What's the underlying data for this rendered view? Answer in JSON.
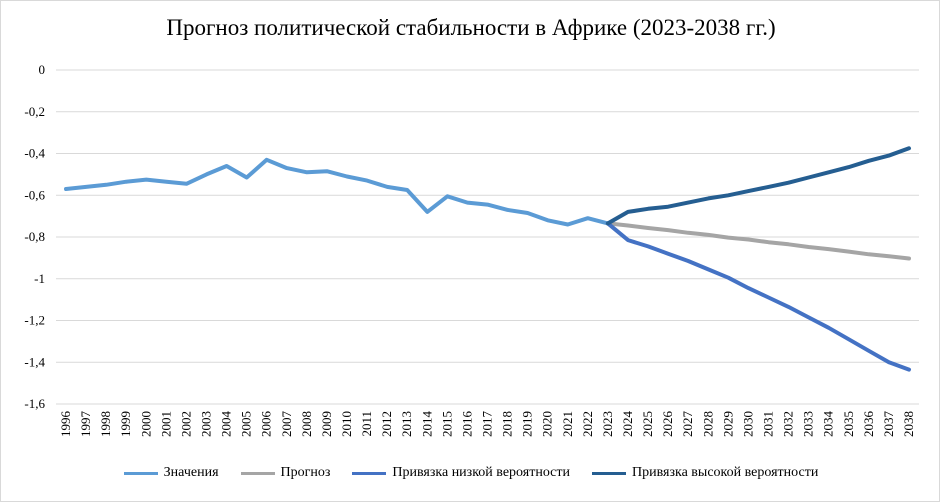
{
  "chart_data": {
    "type": "line",
    "title": "Прогноз политической стабильности в Африке (2023-2038 гг.)",
    "xlabel": "",
    "ylabel": "",
    "ylim": [
      -1.6,
      0
    ],
    "yticks": [
      "0",
      "-0,2",
      "-0,4",
      "-0,6",
      "-0,8",
      "-1",
      "-1,2",
      "-1,4",
      "-1,6"
    ],
    "grid": true,
    "legend_position": "bottom",
    "categories": [
      "1996",
      "1997",
      "1998",
      "1999",
      "2000",
      "2001",
      "2002",
      "2003",
      "2004",
      "2005",
      "2006",
      "2007",
      "2008",
      "2009",
      "2010",
      "2011",
      "2012",
      "2013",
      "2014",
      "2015",
      "2016",
      "2017",
      "2018",
      "2019",
      "2020",
      "2021",
      "2022",
      "2023",
      "2024",
      "2025",
      "2026",
      "2027",
      "2028",
      "2029",
      "2030",
      "2031",
      "2032",
      "2033",
      "2034",
      "2035",
      "2036",
      "2037",
      "2038"
    ],
    "series": [
      {
        "name": "Значения",
        "color": "#5b9bd5",
        "values": [
          -0.57,
          -0.56,
          -0.55,
          -0.535,
          -0.525,
          -0.535,
          -0.545,
          -0.5,
          -0.46,
          -0.515,
          -0.43,
          -0.47,
          -0.49,
          -0.485,
          -0.51,
          -0.53,
          -0.56,
          -0.575,
          -0.68,
          -0.605,
          -0.635,
          -0.645,
          -0.67,
          -0.685,
          -0.72,
          -0.74,
          -0.71,
          -0.735,
          null,
          null,
          null,
          null,
          null,
          null,
          null,
          null,
          null,
          null,
          null,
          null,
          null,
          null,
          null
        ]
      },
      {
        "name": "Прогноз",
        "color": "#a5a5a5",
        "values": [
          null,
          null,
          null,
          null,
          null,
          null,
          null,
          null,
          null,
          null,
          null,
          null,
          null,
          null,
          null,
          null,
          null,
          null,
          null,
          null,
          null,
          null,
          null,
          null,
          null,
          null,
          null,
          -0.735,
          -0.745,
          -0.757,
          -0.767,
          -0.78,
          -0.79,
          -0.803,
          -0.812,
          -0.825,
          -0.835,
          -0.848,
          -0.858,
          -0.87,
          -0.883,
          -0.892,
          -0.903
        ]
      },
      {
        "name": "Привязка низкой вероятности",
        "color": "#4472c4",
        "values": [
          null,
          null,
          null,
          null,
          null,
          null,
          null,
          null,
          null,
          null,
          null,
          null,
          null,
          null,
          null,
          null,
          null,
          null,
          null,
          null,
          null,
          null,
          null,
          null,
          null,
          null,
          null,
          -0.735,
          -0.815,
          -0.845,
          -0.88,
          -0.915,
          -0.955,
          -0.995,
          -1.045,
          -1.09,
          -1.135,
          -1.185,
          -1.235,
          -1.29,
          -1.345,
          -1.4,
          -1.435
        ]
      },
      {
        "name": "Привязка высокой вероятности",
        "color": "#255e91",
        "values": [
          null,
          null,
          null,
          null,
          null,
          null,
          null,
          null,
          null,
          null,
          null,
          null,
          null,
          null,
          null,
          null,
          null,
          null,
          null,
          null,
          null,
          null,
          null,
          null,
          null,
          null,
          null,
          -0.735,
          -0.68,
          -0.665,
          -0.655,
          -0.635,
          -0.615,
          -0.6,
          -0.58,
          -0.56,
          -0.54,
          -0.515,
          -0.49,
          -0.465,
          -0.435,
          -0.41,
          -0.375
        ]
      }
    ]
  }
}
